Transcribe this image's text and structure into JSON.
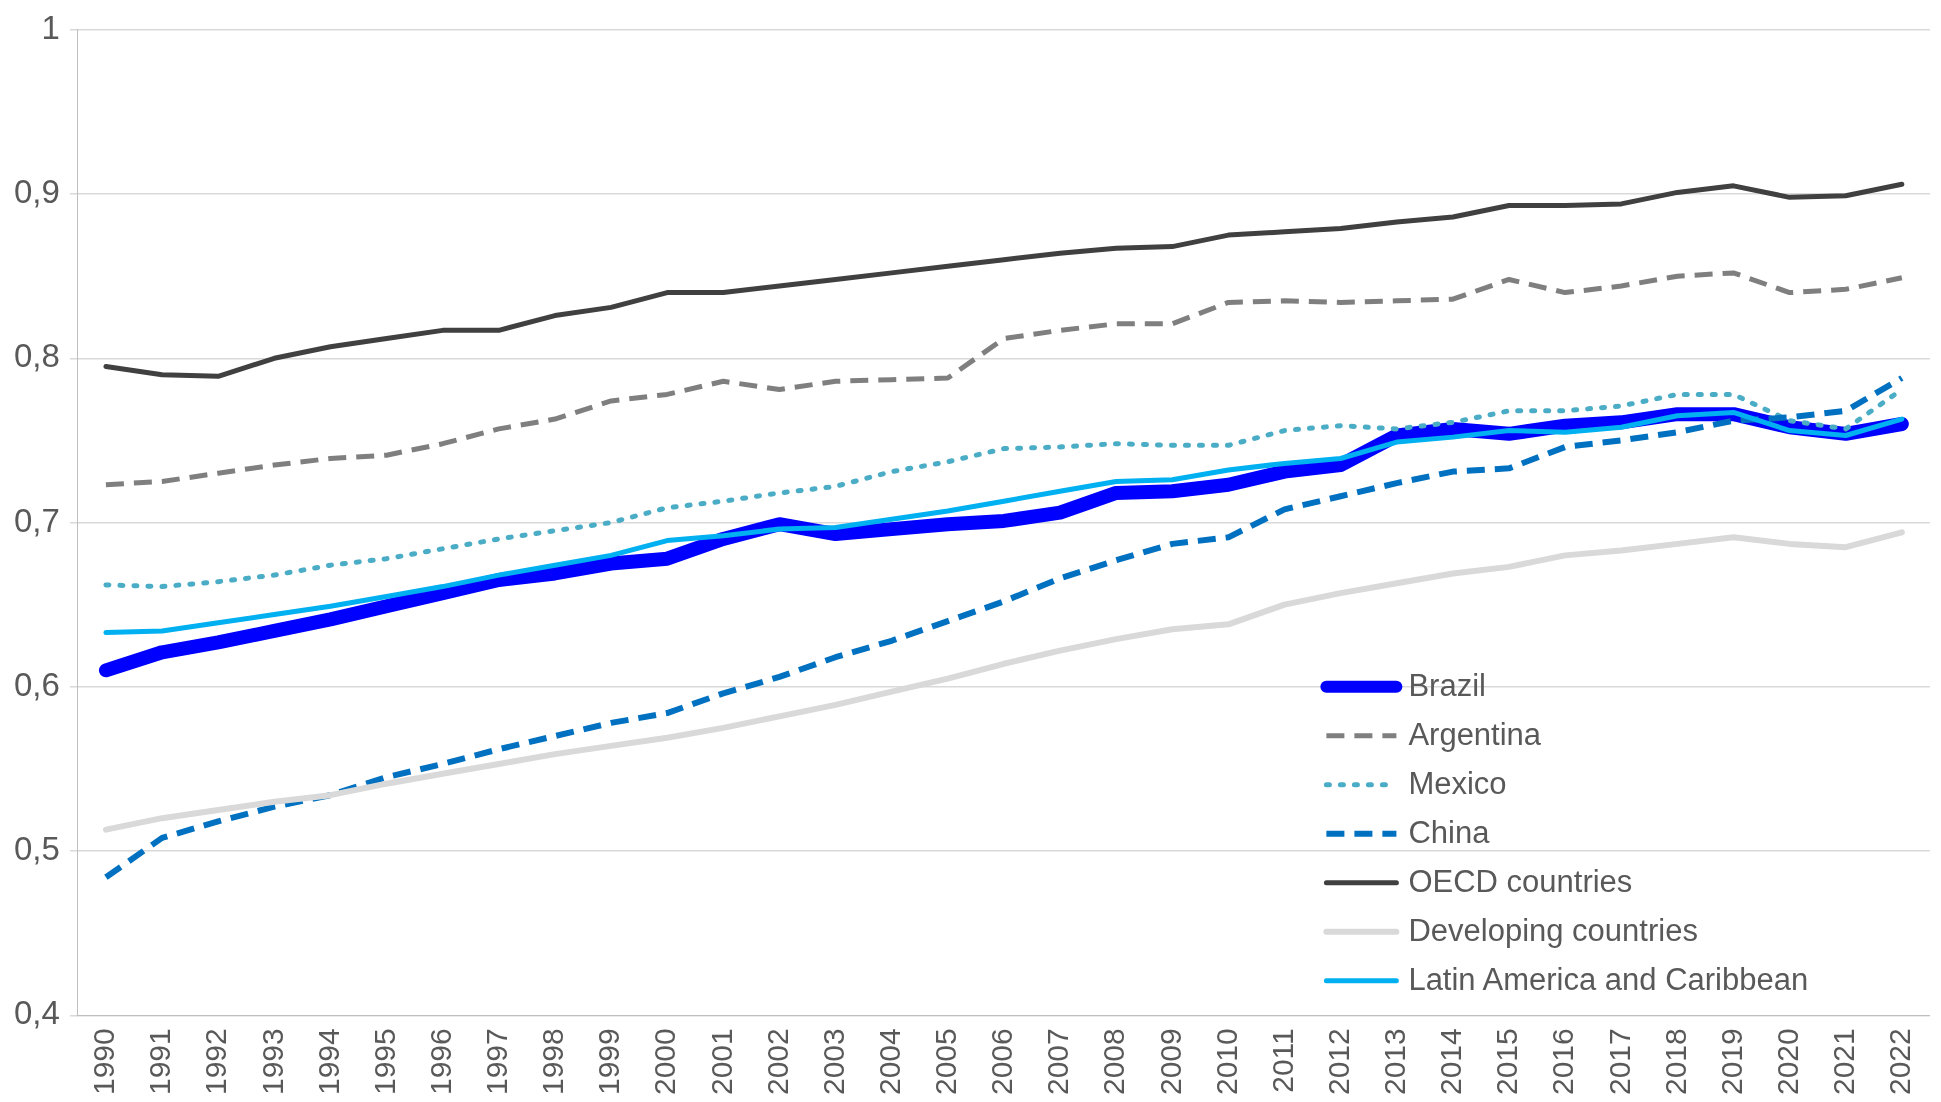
{
  "chart_data": {
    "type": "line",
    "categories": [
      "1990",
      "1991",
      "1992",
      "1993",
      "1994",
      "1995",
      "1996",
      "1997",
      "1998",
      "1999",
      "2000",
      "2001",
      "2002",
      "2003",
      "2004",
      "2005",
      "2006",
      "2007",
      "2008",
      "2009",
      "2010",
      "2011",
      "2012",
      "2013",
      "2014",
      "2015",
      "2016",
      "2017",
      "2018",
      "2019",
      "2020",
      "2021",
      "2022"
    ],
    "ylim": [
      0.4,
      1
    ],
    "yticks": [
      {
        "value": 0.4,
        "label": "0,4"
      },
      {
        "value": 0.5,
        "label": "0,5"
      },
      {
        "value": 0.6,
        "label": "0,6"
      },
      {
        "value": 0.7,
        "label": "0,7"
      },
      {
        "value": 0.8,
        "label": "0,8"
      },
      {
        "value": 0.9,
        "label": "0,9"
      },
      {
        "value": 1,
        "label": "1"
      }
    ],
    "grid": "y",
    "legend": "bottom right",
    "marker": "none",
    "series": [
      {
        "name": "Brazil",
        "color": "#0000ff",
        "line_style": "solid",
        "values": [
          0.61,
          0.621,
          0.627,
          0.634,
          0.641,
          0.649,
          0.657,
          0.665,
          0.669,
          0.675,
          0.678,
          0.69,
          0.699,
          0.693,
          0.696,
          0.699,
          0.701,
          0.706,
          0.718,
          0.719,
          0.723,
          0.731,
          0.735,
          0.753,
          0.757,
          0.754,
          0.759,
          0.761,
          0.766,
          0.766,
          0.758,
          0.754,
          0.76
        ]
      },
      {
        "name": "Argentina",
        "color": "#7f7f7f",
        "line_style": "dashed",
        "values": [
          0.723,
          0.725,
          0.73,
          0.735,
          0.739,
          0.741,
          0.748,
          0.757,
          0.763,
          0.774,
          0.778,
          0.786,
          0.781,
          0.786,
          0.787,
          0.788,
          0.812,
          0.817,
          0.821,
          0.821,
          0.834,
          0.835,
          0.834,
          0.835,
          0.836,
          0.848,
          0.84,
          0.844,
          0.85,
          0.852,
          0.84,
          0.842,
          0.849
        ]
      },
      {
        "name": "Mexico",
        "color": "#4bacc6",
        "line_style": "dotted",
        "values": [
          0.662,
          0.661,
          0.664,
          0.668,
          0.674,
          0.678,
          0.684,
          0.69,
          0.695,
          0.7,
          0.709,
          0.713,
          0.718,
          0.722,
          0.731,
          0.737,
          0.745,
          0.746,
          0.748,
          0.747,
          0.747,
          0.756,
          0.759,
          0.757,
          0.761,
          0.768,
          0.768,
          0.771,
          0.778,
          0.778,
          0.762,
          0.757,
          0.781
        ]
      },
      {
        "name": "China",
        "color": "#0070c0",
        "line_style": "dashed",
        "values": [
          0.484,
          0.508,
          0.518,
          0.527,
          0.534,
          0.545,
          0.553,
          0.562,
          0.57,
          0.578,
          0.584,
          0.596,
          0.606,
          0.618,
          0.628,
          0.64,
          0.652,
          0.666,
          0.677,
          0.687,
          0.691,
          0.708,
          0.716,
          0.724,
          0.731,
          0.733,
          0.746,
          0.75,
          0.755,
          0.762,
          0.764,
          0.768,
          0.788
        ]
      },
      {
        "name": "OECD countries",
        "color": "#404040",
        "line_style": "solid",
        "values": [
          0.795,
          0.79,
          0.789,
          0.8,
          0.807,
          0.812,
          0.817,
          0.817,
          0.826,
          0.831,
          0.84,
          0.84,
          0.844,
          0.848,
          0.852,
          0.856,
          0.86,
          0.864,
          0.867,
          0.868,
          0.875,
          0.877,
          0.879,
          0.883,
          0.886,
          0.893,
          0.893,
          0.894,
          0.901,
          0.905,
          0.898,
          0.899,
          0.906
        ]
      },
      {
        "name": "Developing countries",
        "color": "#d9d9d9",
        "line_style": "solid",
        "values": [
          0.513,
          0.52,
          0.525,
          0.53,
          0.534,
          0.541,
          0.547,
          0.553,
          0.559,
          0.564,
          0.569,
          0.575,
          0.582,
          0.589,
          0.597,
          0.605,
          0.614,
          0.622,
          0.629,
          0.635,
          0.638,
          0.65,
          0.657,
          0.663,
          0.669,
          0.673,
          0.68,
          0.683,
          0.687,
          0.691,
          0.687,
          0.685,
          0.694
        ]
      },
      {
        "name": "Latin America and Caribbean",
        "color": "#00b0f0",
        "line_style": "solid",
        "values": [
          0.633,
          0.634,
          0.639,
          0.644,
          0.649,
          0.655,
          0.661,
          0.668,
          0.674,
          0.68,
          0.689,
          0.692,
          0.696,
          0.697,
          0.702,
          0.707,
          0.713,
          0.719,
          0.725,
          0.726,
          0.732,
          0.736,
          0.739,
          0.749,
          0.752,
          0.756,
          0.755,
          0.758,
          0.765,
          0.767,
          0.756,
          0.753,
          0.763
        ]
      }
    ]
  }
}
